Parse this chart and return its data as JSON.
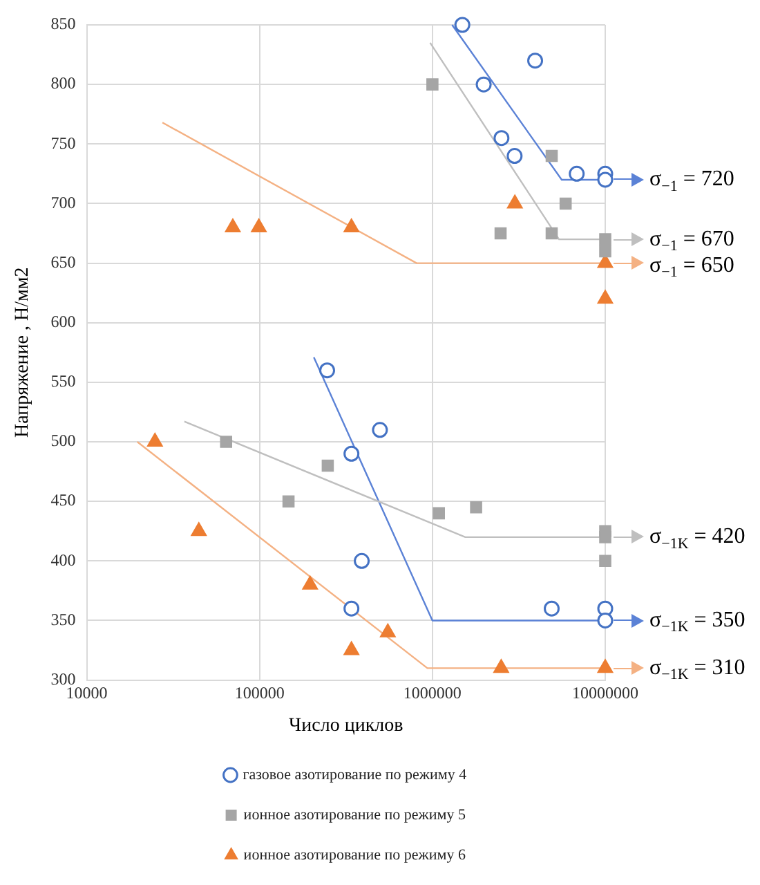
{
  "chart_data": {
    "type": "scatter",
    "xlabel": "Число циклов",
    "ylabel": "Напряжение , Н/мм2",
    "log": "x",
    "grid": true,
    "legend": "bottom",
    "xlim": [
      10000,
      10000000
    ],
    "xticks": [
      10000,
      100000,
      1000000,
      10000000
    ],
    "ylim": [
      300,
      850
    ],
    "yticks": [
      300,
      350,
      400,
      450,
      500,
      550,
      600,
      650,
      700,
      750,
      800,
      850
    ],
    "series": [
      {
        "name": "газовое азотирование по режиму 4",
        "color": "#4472c4",
        "marker": "circle",
        "x": [
          1490000,
          3930000,
          1980000,
          2510000,
          2990000,
          6840000,
          10000000,
          10000000,
          246000,
          497000,
          340000,
          390000,
          340000,
          4900000,
          10000000,
          10000000
        ],
        "values": [
          850,
          820,
          800,
          755,
          740,
          725,
          725,
          720,
          560,
          510,
          490,
          400,
          360,
          360,
          360,
          350
        ]
      },
      {
        "name": "ионное азотирование по режиму 5",
        "color": "#a5a5a5",
        "marker": "square",
        "x": [
          1000000,
          4900000,
          5900000,
          2480000,
          4900000,
          10000000,
          10000000,
          64000,
          248000,
          147000,
          1090000,
          1790000,
          10000000,
          10000000,
          10000000
        ],
        "values": [
          800,
          740,
          700,
          675,
          675,
          670,
          660,
          500,
          480,
          450,
          440,
          445,
          425,
          420,
          400
        ]
      },
      {
        "name": "ионное азотирование по режиму 6",
        "color": "#ed7d31",
        "marker": "triangle",
        "x": [
          70000,
          99000,
          340000,
          3000000,
          10000000,
          10000000,
          24800,
          44500,
          196000,
          552000,
          340000,
          2500000,
          10000000
        ],
        "values": [
          680,
          680,
          680,
          700,
          650,
          620,
          500,
          425,
          380,
          340,
          325,
          310,
          310
        ]
      },
      {
        "type": "line",
        "color": "#5b82d6",
        "marker": "none",
        "x": [
          1300000,
          5600000,
          10000000
        ],
        "values": [
          850,
          720,
          720
        ]
      },
      {
        "type": "line",
        "color": "#bfbfbf",
        "marker": "none",
        "x": [
          970000,
          5400000,
          10000000
        ],
        "values": [
          835,
          670,
          670
        ]
      },
      {
        "type": "line",
        "color": "#f4b183",
        "marker": "none",
        "x": [
          27400,
          810000,
          10000000
        ],
        "values": [
          768,
          650,
          650
        ]
      },
      {
        "type": "line",
        "color": "#bfbfbf",
        "marker": "none",
        "x": [
          36700,
          1550000,
          10000000
        ],
        "values": [
          517,
          420,
          420
        ]
      },
      {
        "type": "line",
        "color": "#5b82d6",
        "marker": "none",
        "x": [
          206000,
          1000000,
          10000000
        ],
        "values": [
          571,
          350,
          350
        ]
      },
      {
        "type": "line",
        "color": "#f4b183",
        "marker": "none",
        "x": [
          19600,
          935000,
          10000000
        ],
        "values": [
          500,
          310,
          310
        ]
      }
    ],
    "annotations": [
      "σ$_{−1}$ = 720",
      "σ$_{−1}$ = 670",
      "σ$_{−1}$ = 650",
      "σ$_{−1K}$ = 420",
      "σ$_{−1K}$ = 350",
      "σ$_{−1K}$ = 310"
    ]
  }
}
